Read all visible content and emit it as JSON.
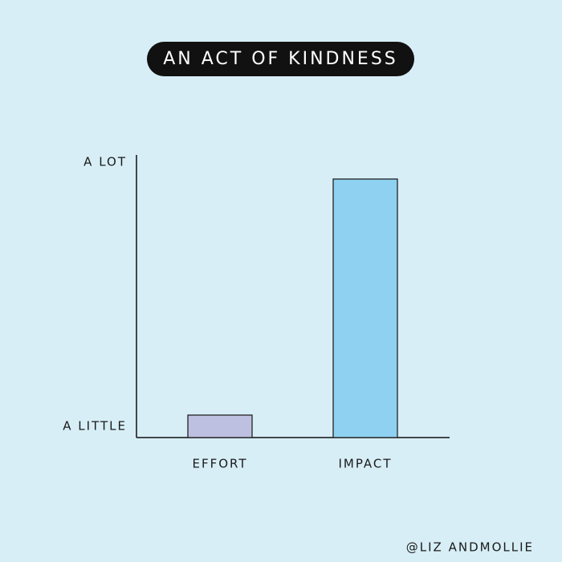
{
  "chart_data": {
    "type": "bar",
    "title": "AN ACT OF KINDNESS",
    "categories": [
      "EFFORT",
      "IMPACT"
    ],
    "values": [
      8,
      92
    ],
    "colors": [
      "#bdc0e0",
      "#8ed1f0"
    ],
    "ylim": [
      0,
      100
    ],
    "yticks": [
      {
        "value": 4,
        "label": "A LITTLE"
      },
      {
        "value": 98,
        "label": "A LOT"
      }
    ],
    "credit": "@LIZ ANDMOLLIE"
  }
}
